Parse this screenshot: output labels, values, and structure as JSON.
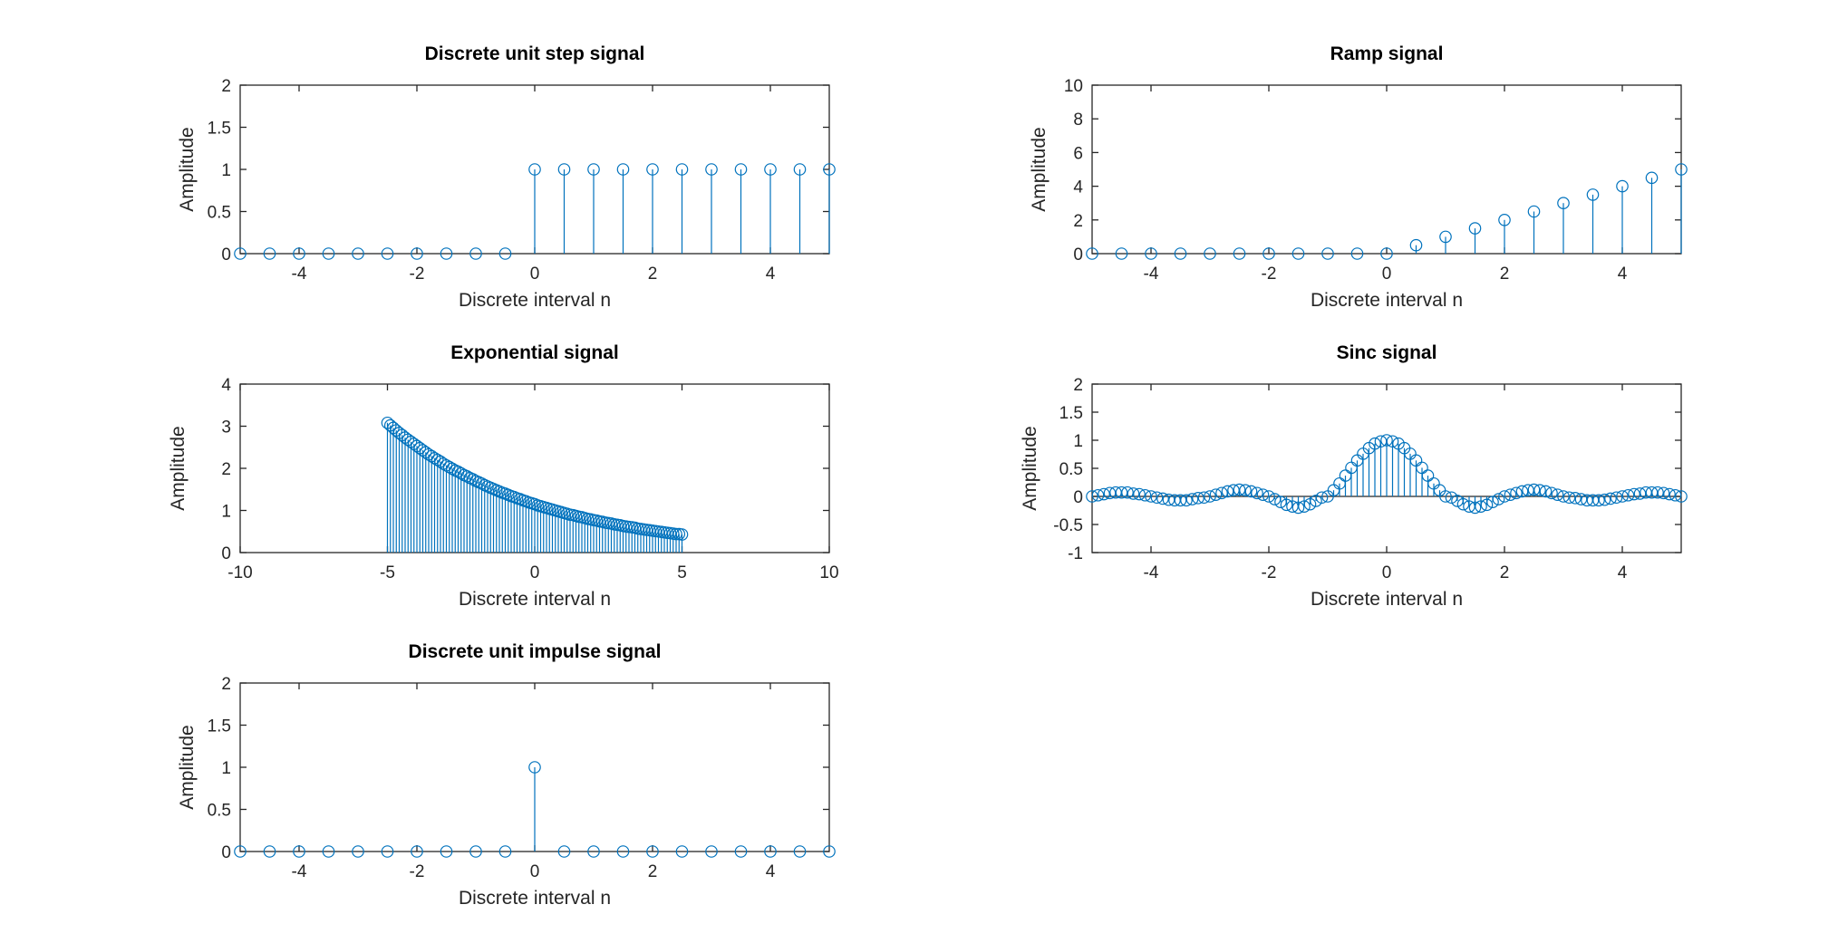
{
  "figure": {
    "stem_color": "#0072bd",
    "axis_color": "#262626"
  },
  "chart_data": [
    {
      "id": "step",
      "type": "stem",
      "title": "Discrete unit step signal",
      "xlabel": "Discrete interval n",
      "ylabel": "Amplitude",
      "xlim": [
        -5,
        5
      ],
      "ylim": [
        0,
        2
      ],
      "xticks": [
        -4,
        -2,
        0,
        2,
        4
      ],
      "yticks": [
        0,
        0.5,
        1,
        1.5,
        2
      ],
      "series": [
        {
          "x": [
            -5,
            -4.5,
            -4,
            -3.5,
            -3,
            -2.5,
            -2,
            -1.5,
            -1,
            -0.5,
            0,
            0.5,
            1,
            1.5,
            2,
            2.5,
            3,
            3.5,
            4,
            4.5,
            5
          ],
          "y": [
            0,
            0,
            0,
            0,
            0,
            0,
            0,
            0,
            0,
            0,
            1,
            1,
            1,
            1,
            1,
            1,
            1,
            1,
            1,
            1,
            1
          ]
        }
      ]
    },
    {
      "id": "ramp",
      "type": "stem",
      "title": "Ramp signal",
      "xlabel": "Discrete interval n",
      "ylabel": "Amplitude",
      "xlim": [
        -5,
        5
      ],
      "ylim": [
        0,
        10
      ],
      "xticks": [
        -4,
        -2,
        0,
        2,
        4
      ],
      "yticks": [
        0,
        2,
        4,
        6,
        8,
        10
      ],
      "series": [
        {
          "x": [
            -5,
            -4.5,
            -4,
            -3.5,
            -3,
            -2.5,
            -2,
            -1.5,
            -1,
            -0.5,
            0,
            0.5,
            1,
            1.5,
            2,
            2.5,
            3,
            3.5,
            4,
            4.5,
            5
          ],
          "y": [
            0,
            0,
            0,
            0,
            0,
            0,
            0,
            0,
            0,
            0,
            0,
            0.5,
            1,
            1.5,
            2,
            2.5,
            3,
            3.5,
            4,
            4.5,
            5
          ]
        }
      ]
    },
    {
      "id": "exponential",
      "type": "stem",
      "title": "Exponential signal",
      "xlabel": "Discrete interval n",
      "ylabel": "Amplitude",
      "xlim": [
        -10,
        10
      ],
      "ylim": [
        0,
        4
      ],
      "xticks": [
        -10,
        -5,
        0,
        5,
        10
      ],
      "yticks": [
        0,
        1,
        2,
        3,
        4
      ],
      "series": [
        {
          "x": [
            -5,
            -4.9,
            -4.8,
            -4.7,
            -4.6,
            -4.5,
            -4.4,
            -4.3,
            -4.2,
            -4.1,
            -4,
            -3.9,
            -3.8,
            -3.7,
            -3.6,
            -3.5,
            -3.4,
            -3.3,
            -3.2,
            -3.1,
            -3,
            -2.9,
            -2.8,
            -2.7,
            -2.6,
            -2.5,
            -2.4,
            -2.3,
            -2.2,
            -2.1,
            -2,
            -1.9,
            -1.8,
            -1.7,
            -1.6,
            -1.5,
            -1.4,
            -1.3,
            -1.2,
            -1.1,
            -1,
            -0.9,
            -0.8,
            -0.7,
            -0.6,
            -0.5,
            -0.4,
            -0.3,
            -0.2,
            -0.1,
            0,
            0.1,
            0.2,
            0.3,
            0.4,
            0.5,
            0.6,
            0.7,
            0.8,
            0.9,
            1,
            1.1,
            1.2,
            1.3,
            1.4,
            1.5,
            1.6,
            1.7,
            1.8,
            1.9,
            2,
            2.1,
            2.2,
            2.3,
            2.4,
            2.5,
            2.6,
            2.7,
            2.8,
            2.9,
            3,
            3.1,
            3.2,
            3.3,
            3.4,
            3.5,
            3.6,
            3.7,
            3.8,
            3.9,
            4,
            4.1,
            4.2,
            4.3,
            4.4,
            4.5,
            4.6,
            4.7,
            4.8,
            4.9,
            5
          ],
          "y": [
            3.08,
            3.02,
            2.96,
            2.9,
            2.84,
            2.79,
            2.73,
            2.68,
            2.63,
            2.58,
            2.53,
            2.48,
            2.43,
            2.38,
            2.33,
            2.29,
            2.24,
            2.2,
            2.16,
            2.11,
            2.07,
            2.03,
            1.99,
            1.95,
            1.92,
            1.88,
            1.84,
            1.81,
            1.77,
            1.74,
            1.7,
            1.67,
            1.64,
            1.6,
            1.57,
            1.54,
            1.51,
            1.48,
            1.45,
            1.42,
            1.4,
            1.37,
            1.34,
            1.32,
            1.29,
            1.27,
            1.24,
            1.22,
            1.19,
            1.17,
            1.15,
            1.12,
            1.1,
            1.08,
            1.06,
            1.04,
            1.02,
            1.0,
            0.98,
            0.96,
            0.94,
            0.92,
            0.9,
            0.89,
            0.87,
            0.85,
            0.84,
            0.82,
            0.8,
            0.79,
            0.77,
            0.76,
            0.74,
            0.73,
            0.71,
            0.7,
            0.69,
            0.67,
            0.66,
            0.65,
            0.63,
            0.62,
            0.61,
            0.6,
            0.59,
            0.57,
            0.56,
            0.55,
            0.54,
            0.53,
            0.52,
            0.51,
            0.5,
            0.49,
            0.48,
            0.47,
            0.46,
            0.45,
            0.44,
            0.44,
            0.43
          ]
        }
      ]
    },
    {
      "id": "sinc",
      "type": "stem",
      "title": "Sinc signal",
      "xlabel": "Discrete interval n",
      "ylabel": "Amplitude",
      "xlim": [
        -5,
        5
      ],
      "ylim": [
        -1,
        2
      ],
      "xticks": [
        -4,
        -2,
        0,
        2,
        4
      ],
      "yticks": [
        -1,
        -0.5,
        0,
        0.5,
        1,
        1.5,
        2
      ],
      "series": [
        {
          "x": [
            -5,
            -4.9,
            -4.8,
            -4.7,
            -4.6,
            -4.5,
            -4.4,
            -4.3,
            -4.2,
            -4.1,
            -4,
            -3.9,
            -3.8,
            -3.7,
            -3.6,
            -3.5,
            -3.4,
            -3.3,
            -3.2,
            -3.1,
            -3,
            -2.9,
            -2.8,
            -2.7,
            -2.6,
            -2.5,
            -2.4,
            -2.3,
            -2.2,
            -2.1,
            -2,
            -1.9,
            -1.8,
            -1.7,
            -1.6,
            -1.5,
            -1.4,
            -1.3,
            -1.2,
            -1.1,
            -1,
            -0.9,
            -0.8,
            -0.7,
            -0.6,
            -0.5,
            -0.4,
            -0.3,
            -0.2,
            -0.1,
            0,
            0.1,
            0.2,
            0.3,
            0.4,
            0.5,
            0.6,
            0.7,
            0.8,
            0.9,
            1,
            1.1,
            1.2,
            1.3,
            1.4,
            1.5,
            1.6,
            1.7,
            1.8,
            1.9,
            2,
            2.1,
            2.2,
            2.3,
            2.4,
            2.5,
            2.6,
            2.7,
            2.8,
            2.9,
            3,
            3.1,
            3.2,
            3.3,
            3.4,
            3.5,
            3.6,
            3.7,
            3.8,
            3.9,
            4,
            4.1,
            4.2,
            4.3,
            4.4,
            4.5,
            4.6,
            4.7,
            4.8,
            4.9,
            5
          ],
          "y": [
            0,
            0.02,
            0.04,
            0.06,
            0.07,
            0.07,
            0.07,
            0.05,
            0.04,
            0.02,
            0,
            -0.02,
            -0.04,
            -0.06,
            -0.07,
            -0.07,
            -0.07,
            -0.05,
            -0.03,
            -0.02,
            0,
            0.03,
            0.06,
            0.09,
            0.11,
            0.12,
            0.11,
            0.09,
            0.06,
            0.03,
            0,
            -0.05,
            -0.1,
            -0.15,
            -0.18,
            -0.2,
            -0.18,
            -0.14,
            -0.08,
            -0.02,
            0,
            0.11,
            0.23,
            0.37,
            0.51,
            0.64,
            0.76,
            0.86,
            0.94,
            0.98,
            1,
            0.98,
            0.94,
            0.86,
            0.76,
            0.64,
            0.51,
            0.37,
            0.23,
            0.11,
            0,
            -0.02,
            -0.08,
            -0.14,
            -0.18,
            -0.2,
            -0.18,
            -0.15,
            -0.1,
            -0.05,
            0,
            0.03,
            0.06,
            0.09,
            0.11,
            0.12,
            0.11,
            0.09,
            0.06,
            0.03,
            0,
            -0.02,
            -0.03,
            -0.05,
            -0.07,
            -0.07,
            -0.07,
            -0.06,
            -0.04,
            -0.02,
            0,
            0.02,
            0.04,
            0.05,
            0.07,
            0.07,
            0.07,
            0.06,
            0.04,
            0.02,
            0
          ]
        }
      ]
    },
    {
      "id": "impulse",
      "type": "stem",
      "title": "Discrete unit impulse signal",
      "xlabel": "Discrete interval n",
      "ylabel": "Amplitude",
      "xlim": [
        -5,
        5
      ],
      "ylim": [
        0,
        2
      ],
      "xticks": [
        -4,
        -2,
        0,
        2,
        4
      ],
      "yticks": [
        0,
        0.5,
        1,
        1.5,
        2
      ],
      "series": [
        {
          "x": [
            -5,
            -4.5,
            -4,
            -3.5,
            -3,
            -2.5,
            -2,
            -1.5,
            -1,
            -0.5,
            0,
            0.5,
            1,
            1.5,
            2,
            2.5,
            3,
            3.5,
            4,
            4.5,
            5
          ],
          "y": [
            0,
            0,
            0,
            0,
            0,
            0,
            0,
            0,
            0,
            0,
            1,
            0,
            0,
            0,
            0,
            0,
            0,
            0,
            0,
            0,
            0
          ]
        }
      ]
    }
  ]
}
